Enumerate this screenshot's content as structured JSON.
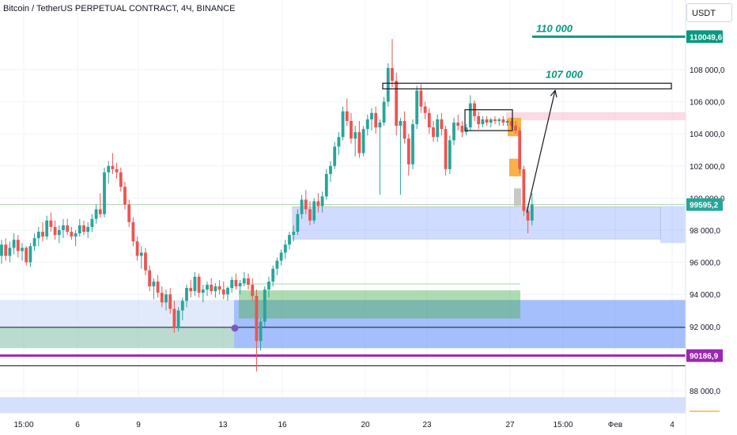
{
  "header": {
    "title": "Bitcoin / TetherUS PERPETUAL CONTRACT, 4Ч, BINANCE",
    "currency": "USDT"
  },
  "annotations": {
    "target_1": "110 000",
    "target_2": "107 000"
  },
  "colors": {
    "up": "#26a69a",
    "down": "#ef5350",
    "target_line": "#089981",
    "purple_line": "#9c27b0",
    "blue_zone": "#2962ff",
    "green_zone": "#4caf50",
    "orange_fvg": "#f7b24a"
  },
  "chart_data": {
    "type": "candlestick",
    "title": "Bitcoin / TetherUS PERPETUAL CONTRACT, 4Ч, BINANCE",
    "y_unit": "USDT",
    "ylim": [
      86600,
      112300
    ],
    "y_ticks": [
      88000,
      90000,
      92000,
      94000,
      96000,
      98000,
      100000,
      102000,
      104000,
      106000,
      108000
    ],
    "y_tick_labels": [
      "88 000,0",
      "90 000,0",
      "92 000,0",
      "94 000,0",
      "96 000,0",
      "98 000,0",
      "100 000,0",
      "102 000,0",
      "104 000,0",
      "106 000,0",
      "108 000,0"
    ],
    "x_tick_labels": [
      "15:00",
      "6",
      "9",
      "13",
      "16",
      "20",
      "23",
      "27",
      "15:00",
      "Фев",
      "4"
    ],
    "price_labels": [
      {
        "value": 110049.6,
        "text": "110049,6",
        "color": "#089981"
      },
      {
        "value": 99595.2,
        "text": "99595,2",
        "color": "#26a69a"
      },
      {
        "value": 90186.9,
        "text": "90186,9",
        "color": "#9c27b0"
      }
    ],
    "horizontal_levels": [
      {
        "value": 110049.6,
        "color": "#089981",
        "label": "110 000"
      },
      {
        "value": 90186.9,
        "color": "#9c27b0"
      },
      {
        "value": 91950,
        "color": "#131722"
      },
      {
        "value": 89550,
        "color": "#131722"
      }
    ],
    "zones": [
      {
        "name": "demand-zone",
        "y_from": 97450,
        "y_to": 99450
      },
      {
        "name": "resistance-box",
        "y_from": 106800,
        "y_to": 107150,
        "label": "107 000"
      },
      {
        "name": "consolidation-box",
        "y_from": 104200,
        "y_to": 105500
      },
      {
        "name": "green-zone",
        "y_from": 92500,
        "y_to": 94250
      },
      {
        "name": "blue-zone",
        "y_from": 90650,
        "y_to": 93650
      },
      {
        "name": "lower-blue-band",
        "y_from": 86600,
        "y_to": 87600
      }
    ],
    "ohlc": [
      [
        96400,
        97400,
        95900,
        97100
      ],
      [
        97100,
        97500,
        96100,
        96400
      ],
      [
        96400,
        97300,
        96000,
        96900
      ],
      [
        96900,
        97800,
        96500,
        97400
      ],
      [
        97400,
        97700,
        96300,
        96700
      ],
      [
        96700,
        97200,
        96100,
        96900
      ],
      [
        96900,
        97000,
        95800,
        96000
      ],
      [
        96000,
        97200,
        95700,
        97000
      ],
      [
        97000,
        97800,
        96700,
        97500
      ],
      [
        97500,
        98200,
        97000,
        97900
      ],
      [
        97900,
        98500,
        97300,
        97600
      ],
      [
        97600,
        98900,
        97400,
        98600
      ],
      [
        98600,
        99100,
        97900,
        98200
      ],
      [
        98200,
        98600,
        97400,
        97700
      ],
      [
        97700,
        98300,
        97200,
        98000
      ],
      [
        98000,
        98700,
        97500,
        98300
      ],
      [
        98300,
        98700,
        97700,
        97900
      ],
      [
        97900,
        98200,
        97400,
        97600
      ],
      [
        97600,
        98000,
        97000,
        97800
      ],
      [
        97800,
        98700,
        97600,
        98300
      ],
      [
        98300,
        98600,
        97700,
        97900
      ],
      [
        97900,
        98500,
        97500,
        98200
      ],
      [
        98200,
        99000,
        97900,
        98700
      ],
      [
        98700,
        99600,
        98400,
        99300
      ],
      [
        99300,
        100300,
        98800,
        99000
      ],
      [
        99000,
        101900,
        98800,
        101600
      ],
      [
        101600,
        102300,
        100900,
        102000
      ],
      [
        102000,
        102800,
        101500,
        101800
      ],
      [
        101800,
        102200,
        101200,
        101600
      ],
      [
        101600,
        101900,
        100400,
        100700
      ],
      [
        100700,
        101000,
        99300,
        99600
      ],
      [
        99600,
        99900,
        98200,
        98500
      ],
      [
        98500,
        98800,
        97000,
        97300
      ],
      [
        97300,
        97600,
        96100,
        96400
      ],
      [
        96400,
        97000,
        95600,
        96600
      ],
      [
        96600,
        96900,
        95200,
        95500
      ],
      [
        95500,
        95800,
        94200,
        94500
      ],
      [
        94500,
        95000,
        93700,
        94800
      ],
      [
        94800,
        95200,
        93800,
        94100
      ],
      [
        94100,
        94500,
        93200,
        93500
      ],
      [
        93500,
        94300,
        93000,
        94000
      ],
      [
        94000,
        94400,
        92800,
        93100
      ],
      [
        93100,
        93600,
        91600,
        91900
      ],
      [
        91900,
        93200,
        91700,
        93000
      ],
      [
        93000,
        93800,
        92400,
        93600
      ],
      [
        93600,
        94600,
        93200,
        94400
      ],
      [
        94400,
        94900,
        93800,
        94200
      ],
      [
        94200,
        95400,
        93900,
        95100
      ],
      [
        95100,
        95300,
        93800,
        94100
      ],
      [
        94100,
        94600,
        93500,
        94300
      ],
      [
        94300,
        94800,
        93900,
        94600
      ],
      [
        94600,
        95000,
        94000,
        94200
      ],
      [
        94200,
        94700,
        93800,
        94500
      ],
      [
        94500,
        94900,
        94000,
        94300
      ],
      [
        94300,
        94800,
        93700,
        94000
      ],
      [
        94000,
        94500,
        93600,
        94400
      ],
      [
        94400,
        95100,
        94100,
        94900
      ],
      [
        94900,
        95300,
        94300,
        94500
      ],
      [
        94500,
        94900,
        94000,
        94700
      ],
      [
        94700,
        95400,
        94500,
        95000
      ],
      [
        95000,
        95300,
        94300,
        94600
      ],
      [
        94600,
        95000,
        93600,
        93900
      ],
      [
        93900,
        94300,
        89200,
        91100
      ],
      [
        91100,
        92500,
        90500,
        92300
      ],
      [
        92300,
        94500,
        92000,
        94300
      ],
      [
        94300,
        95100,
        93800,
        94800
      ],
      [
        94800,
        95800,
        94500,
        95600
      ],
      [
        95600,
        96300,
        95200,
        96100
      ],
      [
        96100,
        96800,
        95800,
        96600
      ],
      [
        96600,
        97400,
        96200,
        97100
      ],
      [
        97100,
        97900,
        96800,
        97700
      ],
      [
        97700,
        98300,
        97300,
        97900
      ],
      [
        97900,
        99300,
        97700,
        99000
      ],
      [
        99000,
        100200,
        98700,
        99900
      ],
      [
        99900,
        100500,
        99000,
        99300
      ],
      [
        99300,
        99800,
        98300,
        98600
      ],
      [
        98600,
        100000,
        98400,
        99800
      ],
      [
        99800,
        100300,
        99100,
        99500
      ],
      [
        99500,
        100400,
        99100,
        100100
      ],
      [
        100100,
        101800,
        99900,
        101500
      ],
      [
        101500,
        102300,
        101000,
        102000
      ],
      [
        102000,
        103500,
        101800,
        103200
      ],
      [
        103200,
        104100,
        102700,
        103800
      ],
      [
        103800,
        105700,
        103600,
        105400
      ],
      [
        105400,
        106200,
        104500,
        104800
      ],
      [
        104800,
        105300,
        103400,
        103700
      ],
      [
        103700,
        104500,
        102600,
        104100
      ],
      [
        104100,
        104800,
        102500,
        102800
      ],
      [
        102800,
        104500,
        102600,
        104300
      ],
      [
        104300,
        105200,
        103900,
        104900
      ],
      [
        104900,
        105600,
        104200,
        105300
      ],
      [
        105300,
        105700,
        104000,
        104400
      ],
      [
        104400,
        104900,
        100200,
        104700
      ],
      [
        104700,
        106300,
        104500,
        106000
      ],
      [
        106000,
        108400,
        105700,
        108100
      ],
      [
        108100,
        109900,
        106900,
        107300
      ],
      [
        107300,
        107800,
        103900,
        104500
      ],
      [
        104500,
        105000,
        100200,
        104800
      ],
      [
        104800,
        105400,
        103400,
        103700
      ],
      [
        103700,
        104000,
        101400,
        102100
      ],
      [
        102100,
        104900,
        101800,
        104600
      ],
      [
        104600,
        107000,
        104300,
        106700
      ],
      [
        106700,
        107100,
        105300,
        105700
      ],
      [
        105700,
        106000,
        104900,
        105300
      ],
      [
        105300,
        105600,
        104000,
        104400
      ],
      [
        104400,
        104800,
        103500,
        103800
      ],
      [
        103800,
        105200,
        103500,
        104900
      ],
      [
        104900,
        105300,
        103900,
        104300
      ],
      [
        104300,
        104500,
        101400,
        101800
      ],
      [
        101800,
        103900,
        101500,
        103600
      ],
      [
        103600,
        105000,
        103300,
        104700
      ],
      [
        104700,
        105200,
        104200,
        104500
      ],
      [
        104500,
        104800,
        103800,
        104100
      ],
      [
        104100,
        104600,
        103900,
        104400
      ],
      [
        104400,
        106400,
        104200,
        105900
      ],
      [
        105900,
        106100,
        104800,
        105100
      ],
      [
        105100,
        105400,
        104300,
        104600
      ],
      [
        104600,
        105100,
        104400,
        104900
      ],
      [
        104900,
        105100,
        104500,
        104700
      ],
      [
        104700,
        105000,
        104400,
        104900
      ],
      [
        104900,
        105100,
        104600,
        104800
      ],
      [
        104800,
        105000,
        104500,
        104900
      ],
      [
        104900,
        105100,
        104500,
        104700
      ],
      [
        104700,
        104900,
        104500,
        104800
      ],
      [
        104800,
        105000,
        104300,
        104500
      ],
      [
        104500,
        104800,
        104000,
        104200
      ],
      [
        104200,
        104400,
        101500,
        101800
      ],
      [
        101800,
        102000,
        98900,
        99200
      ],
      [
        99200,
        99500,
        97800,
        98600
      ],
      [
        98600,
        100300,
        98300,
        99600
      ]
    ],
    "projection": {
      "from": [
        127,
        98600
      ],
      "to": [
        132,
        107000
      ]
    }
  }
}
